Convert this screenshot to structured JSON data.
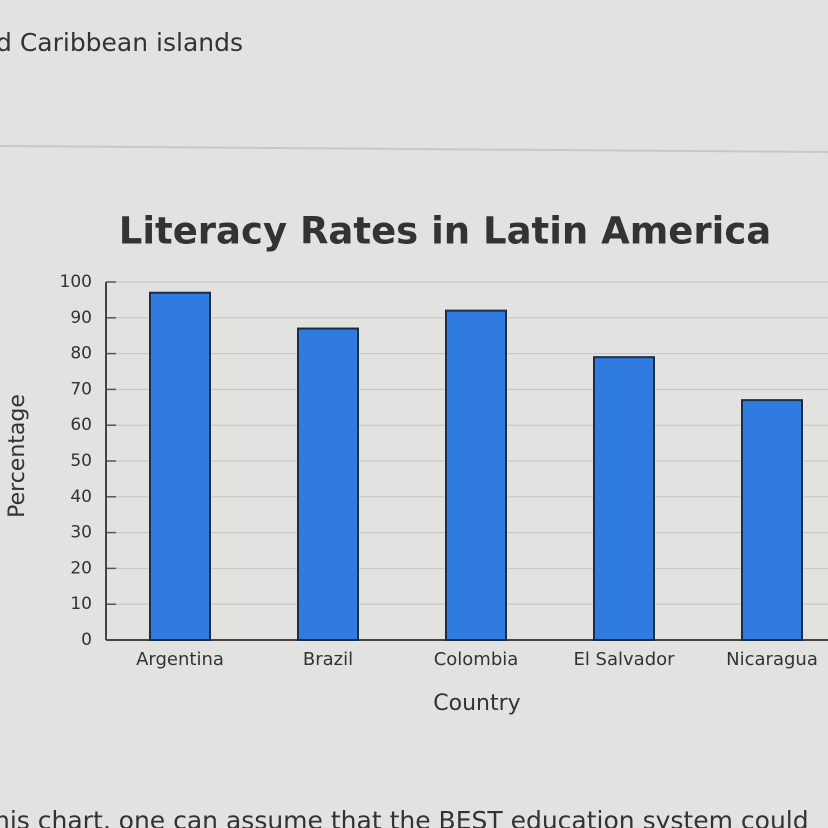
{
  "page_header": "d Caribbean islands",
  "page_footer": "his chart, one can assume that the BEST education system could",
  "chart_data": {
    "type": "bar",
    "title": "Literacy Rates in Latin America",
    "x_label": "Country",
    "y_label": "Percentage",
    "categories": [
      "Argentina",
      "Brazil",
      "Colombia",
      "El Salvador",
      "Nicaragua"
    ],
    "values": [
      97,
      87,
      92,
      79,
      67
    ],
    "color": "#2f7be0",
    "ylim": [
      0,
      100
    ],
    "yticks": [
      0,
      10,
      20,
      30,
      40,
      50,
      60,
      70,
      80,
      90,
      100
    ],
    "grid": true
  }
}
